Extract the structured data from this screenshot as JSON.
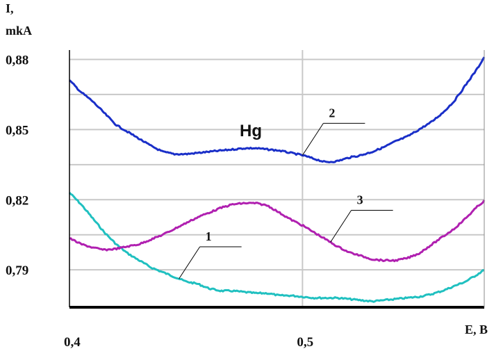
{
  "chart_data": {
    "type": "line",
    "ylabel_lines": [
      "I,",
      "mkA"
    ],
    "xlabel": "E, B",
    "annotation": "Hg",
    "x_ticks": [
      {
        "value": 0.4,
        "label": "0,4"
      },
      {
        "value": 0.5,
        "label": "0,5"
      }
    ],
    "y_ticks": [
      {
        "value": 0.79,
        "label": "0,79"
      },
      {
        "value": 0.82,
        "label": "0,82"
      },
      {
        "value": 0.85,
        "label": "0,85"
      },
      {
        "value": 0.88,
        "label": "0,88"
      }
    ],
    "xlim": [
      0.4,
      0.578
    ],
    "ylim": [
      0.774,
      0.884
    ],
    "grid": true,
    "series": [
      {
        "name": "1",
        "color": "#20c0c0",
        "x": [
          0.4,
          0.405,
          0.41,
          0.415,
          0.42,
          0.425,
          0.43,
          0.435,
          0.44,
          0.445,
          0.45,
          0.455,
          0.46,
          0.465,
          0.47,
          0.475,
          0.48,
          0.485,
          0.49,
          0.495,
          0.5,
          0.505,
          0.51,
          0.515,
          0.52,
          0.525,
          0.53,
          0.535,
          0.54,
          0.545,
          0.55,
          0.555,
          0.56,
          0.565,
          0.57,
          0.575,
          0.578
        ],
        "y": [
          0.823,
          0.818,
          0.812,
          0.806,
          0.801,
          0.797,
          0.794,
          0.791,
          0.789,
          0.787,
          0.785,
          0.784,
          0.782,
          0.781,
          0.781,
          0.7805,
          0.78,
          0.78,
          0.779,
          0.779,
          0.7785,
          0.778,
          0.778,
          0.778,
          0.7775,
          0.777,
          0.7765,
          0.777,
          0.7775,
          0.778,
          0.7785,
          0.7795,
          0.781,
          0.783,
          0.785,
          0.788,
          0.79
        ]
      },
      {
        "name": "2",
        "color": "#1a2fc8",
        "x": [
          0.4,
          0.405,
          0.41,
          0.415,
          0.42,
          0.425,
          0.43,
          0.435,
          0.44,
          0.445,
          0.45,
          0.455,
          0.46,
          0.465,
          0.47,
          0.475,
          0.48,
          0.485,
          0.49,
          0.495,
          0.5,
          0.505,
          0.51,
          0.515,
          0.52,
          0.525,
          0.53,
          0.535,
          0.54,
          0.545,
          0.55,
          0.555,
          0.56,
          0.565,
          0.57,
          0.575,
          0.578
        ],
        "y": [
          0.871,
          0.866,
          0.862,
          0.857,
          0.852,
          0.849,
          0.846,
          0.843,
          0.8405,
          0.8395,
          0.8395,
          0.84,
          0.8405,
          0.841,
          0.8415,
          0.842,
          0.842,
          0.8415,
          0.841,
          0.84,
          0.839,
          0.8375,
          0.836,
          0.8365,
          0.838,
          0.839,
          0.8405,
          0.8425,
          0.845,
          0.847,
          0.85,
          0.853,
          0.857,
          0.862,
          0.869,
          0.876,
          0.881
        ]
      },
      {
        "name": "3",
        "color": "#b020b0",
        "x": [
          0.4,
          0.405,
          0.41,
          0.415,
          0.42,
          0.425,
          0.43,
          0.435,
          0.44,
          0.445,
          0.45,
          0.455,
          0.46,
          0.465,
          0.47,
          0.475,
          0.48,
          0.485,
          0.49,
          0.495,
          0.5,
          0.505,
          0.51,
          0.515,
          0.52,
          0.525,
          0.53,
          0.535,
          0.54,
          0.545,
          0.55,
          0.555,
          0.56,
          0.565,
          0.57,
          0.575,
          0.578
        ],
        "y": [
          0.8035,
          0.801,
          0.7995,
          0.7985,
          0.799,
          0.8,
          0.801,
          0.803,
          0.805,
          0.8075,
          0.81,
          0.8125,
          0.8145,
          0.8165,
          0.818,
          0.8185,
          0.8185,
          0.8175,
          0.8145,
          0.8115,
          0.809,
          0.806,
          0.803,
          0.8,
          0.7975,
          0.796,
          0.7945,
          0.794,
          0.794,
          0.795,
          0.797,
          0.8005,
          0.804,
          0.8075,
          0.812,
          0.817,
          0.8195
        ]
      }
    ],
    "curve_labels": [
      {
        "text": "1",
        "series": "1",
        "at_x": 0.447
      },
      {
        "text": "2",
        "series": "2",
        "at_x": 0.5
      },
      {
        "text": "3",
        "series": "3",
        "at_x": 0.512
      }
    ]
  }
}
